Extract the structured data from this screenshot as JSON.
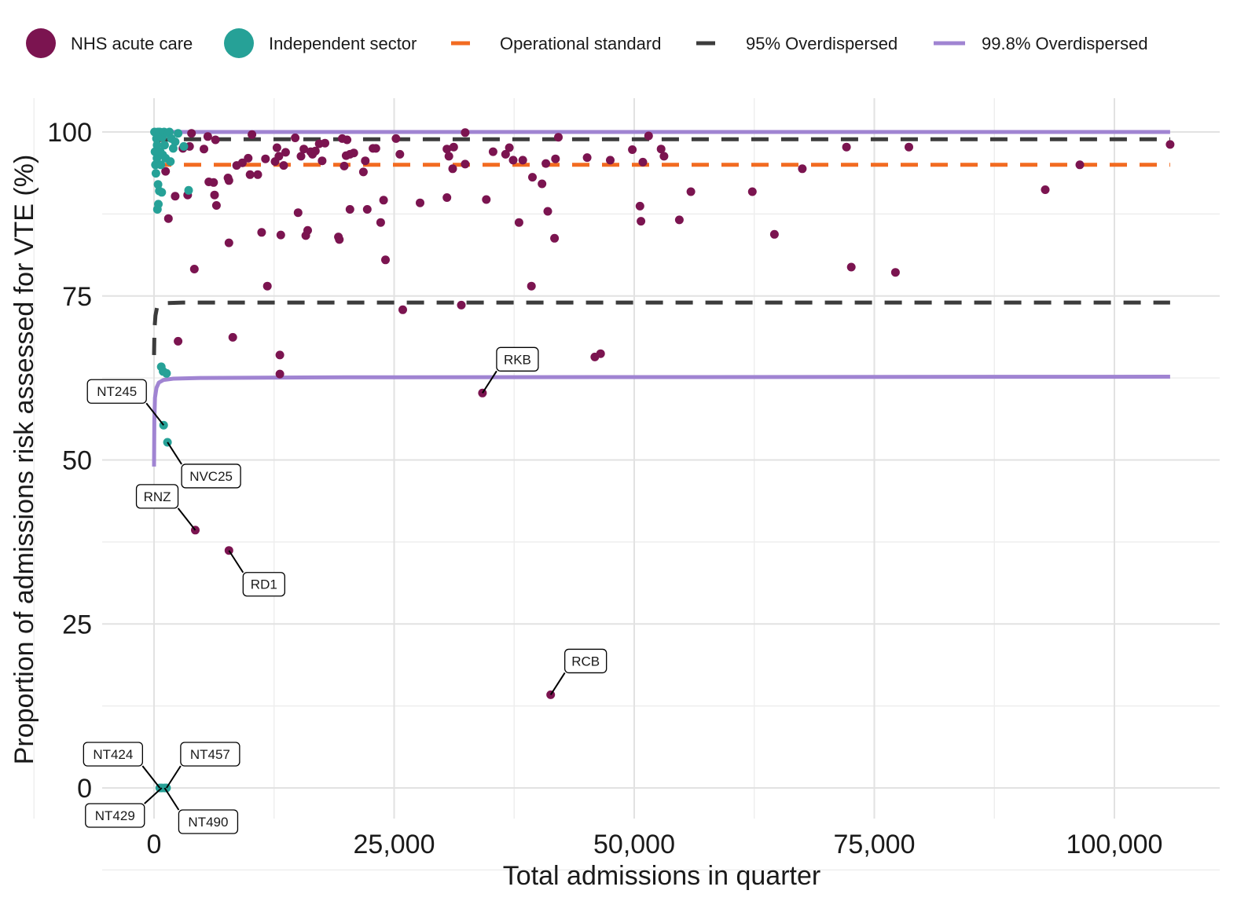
{
  "chart_data": {
    "type": "scatter",
    "xlabel": "Total admissions in quarter",
    "ylabel": "Proportion of admissions risk assessed for VTE (%)",
    "xlim": [
      -5000,
      111000
    ],
    "ylim": [
      -4,
      105
    ],
    "x_ticks": [
      0,
      25000,
      50000,
      75000,
      100000
    ],
    "x_tick_labels": [
      "0",
      "25,000",
      "50,000",
      "75,000",
      "100,000"
    ],
    "y_ticks": [
      0,
      25,
      50,
      75,
      100
    ],
    "y_tick_labels": [
      "0",
      "25",
      "50",
      "75",
      "100"
    ],
    "grid": true,
    "legend_position": "top",
    "legend": [
      {
        "label": "NHS acute care",
        "kind": "point",
        "color": "#7B1450"
      },
      {
        "label": "Independent sector",
        "kind": "point",
        "color": "#26A197"
      },
      {
        "label": "Operational standard",
        "kind": "dashed",
        "color": "#F26B21"
      },
      {
        "label": "95% Overdispersed",
        "kind": "dashed",
        "color": "#3C3C3C"
      },
      {
        "label": "99.8% Overdispersed",
        "kind": "solid",
        "color": "#A084D2"
      }
    ],
    "series": [
      {
        "name": "NHS acute care",
        "color": "#7B1450",
        "points": [
          [
            1200,
            94
          ],
          [
            1500,
            86.8
          ],
          [
            2200,
            90.2
          ],
          [
            2500,
            68.1
          ],
          [
            3000,
            97.5
          ],
          [
            3500,
            90.4
          ],
          [
            3700,
            97.8
          ],
          [
            3900,
            99.8
          ],
          [
            4200,
            79.1
          ],
          [
            4300,
            39.3
          ],
          [
            5200,
            97.4
          ],
          [
            5600,
            99.3
          ],
          [
            5700,
            92.4
          ],
          [
            6200,
            92.3
          ],
          [
            6300,
            90.4
          ],
          [
            6400,
            98.8
          ],
          [
            6500,
            88.8
          ],
          [
            7700,
            93
          ],
          [
            7800,
            92.6
          ],
          [
            7800,
            83.1
          ],
          [
            7800,
            36.2
          ],
          [
            8200,
            68.7
          ],
          [
            8600,
            94.9
          ],
          [
            9200,
            95.3
          ],
          [
            9800,
            96
          ],
          [
            10000,
            93.5
          ],
          [
            10200,
            99.6
          ],
          [
            10800,
            93.5
          ],
          [
            11200,
            84.7
          ],
          [
            11600,
            95.9
          ],
          [
            11800,
            76.5
          ],
          [
            12600,
            95.5
          ],
          [
            12800,
            97.6
          ],
          [
            13000,
            96.3
          ],
          [
            13100,
            66
          ],
          [
            13100,
            63.1
          ],
          [
            13200,
            84.3
          ],
          [
            13500,
            94.9
          ],
          [
            13700,
            96.9
          ],
          [
            14700,
            99.1
          ],
          [
            15000,
            87.7
          ],
          [
            15300,
            96.3
          ],
          [
            15600,
            97.4
          ],
          [
            15800,
            84.2
          ],
          [
            16000,
            85
          ],
          [
            16300,
            97
          ],
          [
            16500,
            96.6
          ],
          [
            16800,
            97.1
          ],
          [
            17200,
            98.2
          ],
          [
            17500,
            95.6
          ],
          [
            17800,
            98.3
          ],
          [
            19200,
            84
          ],
          [
            19300,
            83.6
          ],
          [
            19600,
            99
          ],
          [
            19800,
            94.8
          ],
          [
            20000,
            96.4
          ],
          [
            20100,
            98.8
          ],
          [
            20400,
            96.6
          ],
          [
            20400,
            88.2
          ],
          [
            20800,
            96.8
          ],
          [
            21800,
            93.9
          ],
          [
            22000,
            95.6
          ],
          [
            22200,
            88.2
          ],
          [
            22800,
            97.5
          ],
          [
            23100,
            97.5
          ],
          [
            23600,
            86.2
          ],
          [
            23900,
            89.6
          ],
          [
            24100,
            80.5
          ],
          [
            25200,
            99
          ],
          [
            25600,
            96.6
          ],
          [
            25900,
            72.9
          ],
          [
            27700,
            89.2
          ],
          [
            30500,
            97.4
          ],
          [
            30500,
            90
          ],
          [
            30700,
            96.3
          ],
          [
            31100,
            94.4
          ],
          [
            31200,
            97.7
          ],
          [
            32000,
            73.6
          ],
          [
            32400,
            99.9
          ],
          [
            32400,
            95.1
          ],
          [
            34200,
            60.2
          ],
          [
            34600,
            89.7
          ],
          [
            35300,
            97
          ],
          [
            36600,
            96.6
          ],
          [
            37000,
            97.6
          ],
          [
            37400,
            95.7
          ],
          [
            38000,
            86.2
          ],
          [
            38400,
            95.7
          ],
          [
            39300,
            76.5
          ],
          [
            39400,
            93.1
          ],
          [
            40400,
            92.1
          ],
          [
            40800,
            95.2
          ],
          [
            41000,
            87.9
          ],
          [
            41300,
            14.2
          ],
          [
            41700,
            83.8
          ],
          [
            41800,
            95.9
          ],
          [
            42100,
            99.2
          ],
          [
            45100,
            96.1
          ],
          [
            45900,
            65.7
          ],
          [
            46500,
            66.2
          ],
          [
            47500,
            95.7
          ],
          [
            49800,
            97.3
          ],
          [
            50600,
            88.7
          ],
          [
            50700,
            86.4
          ],
          [
            50900,
            95.4
          ],
          [
            51500,
            99.4
          ],
          [
            52800,
            97.4
          ],
          [
            53100,
            96.3
          ],
          [
            54700,
            86.6
          ],
          [
            55900,
            90.9
          ],
          [
            62300,
            90.9
          ],
          [
            64600,
            84.4
          ],
          [
            67500,
            94.4
          ],
          [
            72100,
            97.7
          ],
          [
            72600,
            79.4
          ],
          [
            77200,
            78.6
          ],
          [
            78600,
            97.7
          ],
          [
            92800,
            91.2
          ],
          [
            96400,
            95
          ],
          [
            105800,
            98.1
          ]
        ]
      },
      {
        "name": "Independent sector",
        "color": "#26A197",
        "points": [
          [
            50,
            100
          ],
          [
            100,
            97
          ],
          [
            150,
            95
          ],
          [
            200,
            93.7
          ],
          [
            250,
            99
          ],
          [
            300,
            96
          ],
          [
            320,
            98
          ],
          [
            350,
            88.2
          ],
          [
            400,
            100
          ],
          [
            420,
            92
          ],
          [
            450,
            89
          ],
          [
            500,
            99.5
          ],
          [
            550,
            91
          ],
          [
            600,
            100
          ],
          [
            650,
            97
          ],
          [
            700,
            95
          ],
          [
            750,
            64.2
          ],
          [
            800,
            90.8
          ],
          [
            850,
            99.2
          ],
          [
            900,
            96.5
          ],
          [
            950,
            63.5
          ],
          [
            1000,
            55.3
          ],
          [
            1050,
            100
          ],
          [
            1100,
            98
          ],
          [
            1200,
            96
          ],
          [
            1300,
            63.2
          ],
          [
            1400,
            52.7
          ],
          [
            1500,
            99.8
          ],
          [
            1600,
            100
          ],
          [
            1700,
            95.5
          ],
          [
            1800,
            99
          ],
          [
            2000,
            97.5
          ],
          [
            2200,
            98.5
          ],
          [
            2500,
            99.8
          ],
          [
            3100,
            97.8
          ],
          [
            3600,
            91.1
          ],
          [
            600,
            0
          ],
          [
            800,
            0
          ],
          [
            1100,
            0
          ],
          [
            1300,
            0
          ]
        ]
      }
    ],
    "reference_lines": [
      {
        "name": "Operational standard",
        "style": "dashed",
        "color": "#F26B21",
        "x": [
          0,
          105800
        ],
        "y": [
          95,
          95
        ]
      },
      {
        "name": "95% Overdispersed",
        "style": "dashed",
        "color": "#3C3C3C",
        "x": [
          0,
          200,
          800,
          3000,
          10000,
          30000,
          105800
        ],
        "y": [
          98.7,
          98.7,
          98.8,
          98.9,
          98.9,
          98.9,
          98.9
        ]
      },
      {
        "name": "95% Overdispersed",
        "style": "dashed",
        "color": "#3C3C3C",
        "x": [
          0,
          50,
          150,
          300,
          600,
          1200,
          3000,
          10000,
          40000,
          105800
        ],
        "y": [
          66,
          70,
          72,
          73.2,
          73.6,
          73.9,
          74,
          74,
          74,
          74
        ]
      },
      {
        "name": "99.8% Overdispersed",
        "style": "solid",
        "color": "#A084D2",
        "x": [
          0,
          105800
        ],
        "y": [
          100,
          100
        ]
      },
      {
        "name": "99.8% Overdispersed",
        "style": "solid",
        "color": "#A084D2",
        "x": [
          0,
          30,
          100,
          250,
          500,
          1000,
          2000,
          5000,
          20000,
          105800
        ],
        "y": [
          49,
          56,
          59.5,
          61,
          61.8,
          62.2,
          62.4,
          62.5,
          62.6,
          62.7
        ]
      }
    ],
    "annotations": [
      {
        "text": "NT245",
        "x": 1000,
        "y": 55.3,
        "side": "up-left"
      },
      {
        "text": "NVC25",
        "x": 1400,
        "y": 52.7,
        "side": "down-right"
      },
      {
        "text": "RNZ",
        "x": 4300,
        "y": 39.3,
        "side": "up-left"
      },
      {
        "text": "RD1",
        "x": 7800,
        "y": 36.2,
        "side": "down-right"
      },
      {
        "text": "RKB",
        "x": 34200,
        "y": 60.2,
        "side": "up-right"
      },
      {
        "text": "RCB",
        "x": 41300,
        "y": 14.2,
        "side": "up-right"
      },
      {
        "text": "NT424",
        "x": 600,
        "y": 0,
        "side": "up-left"
      },
      {
        "text": "NT457",
        "x": 1300,
        "y": 0,
        "side": "up-right"
      },
      {
        "text": "NT429",
        "x": 800,
        "y": 0,
        "side": "down-left"
      },
      {
        "text": "NT490",
        "x": 1100,
        "y": 0,
        "side": "down-right"
      }
    ]
  }
}
